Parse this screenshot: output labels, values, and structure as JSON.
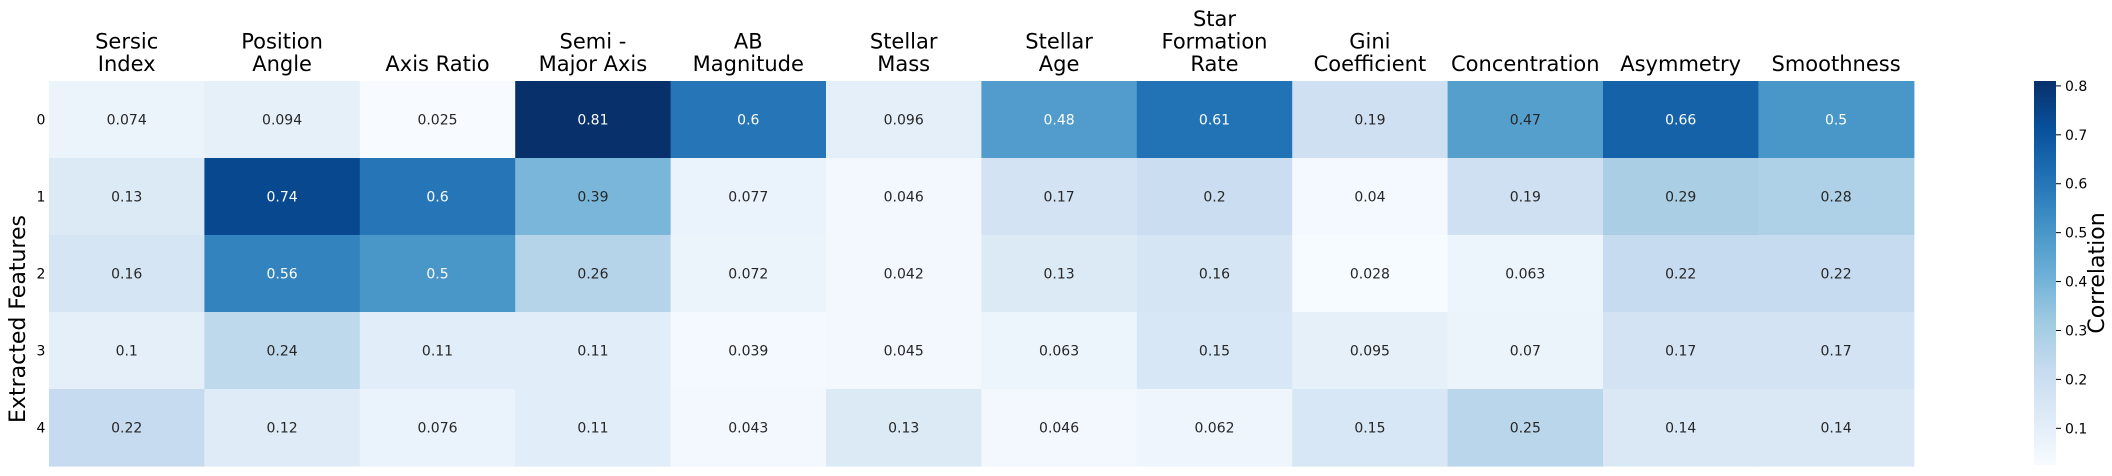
{
  "chart_data": {
    "type": "heatmap",
    "title": "",
    "ylabel": "Extracted Features",
    "colorbar_label": "Correlation",
    "colormap": "Blues",
    "vmin": 0.025,
    "vmax": 0.81,
    "colorbar_ticks": [
      0.1,
      0.2,
      0.3,
      0.4,
      0.5,
      0.6,
      0.7,
      0.8
    ],
    "columns": [
      [
        "Sersic",
        "Index"
      ],
      [
        "Position",
        "Angle"
      ],
      [
        "Axis Ratio"
      ],
      [
        "Semi -",
        "Major Axis"
      ],
      [
        "AB",
        "Magnitude"
      ],
      [
        "Stellar",
        "Mass"
      ],
      [
        "Stellar",
        "Age"
      ],
      [
        "Star",
        "Formation",
        "Rate"
      ],
      [
        "Gini",
        "Coefficient"
      ],
      [
        "Concentration"
      ],
      [
        "Asymmetry"
      ],
      [
        "Smoothness"
      ]
    ],
    "rows": [
      "0",
      "1",
      "2",
      "3",
      "4"
    ],
    "values": [
      [
        0.074,
        0.094,
        0.025,
        0.81,
        0.6,
        0.096,
        0.48,
        0.61,
        0.19,
        0.47,
        0.66,
        0.5
      ],
      [
        0.13,
        0.74,
        0.6,
        0.39,
        0.077,
        0.046,
        0.17,
        0.2,
        0.04,
        0.19,
        0.29,
        0.28
      ],
      [
        0.16,
        0.56,
        0.5,
        0.26,
        0.072,
        0.042,
        0.13,
        0.16,
        0.028,
        0.063,
        0.22,
        0.22
      ],
      [
        0.1,
        0.24,
        0.11,
        0.11,
        0.039,
        0.045,
        0.063,
        0.15,
        0.095,
        0.07,
        0.17,
        0.17
      ],
      [
        0.22,
        0.12,
        0.076,
        0.11,
        0.043,
        0.13,
        0.046,
        0.062,
        0.15,
        0.25,
        0.14,
        0.14
      ]
    ]
  }
}
